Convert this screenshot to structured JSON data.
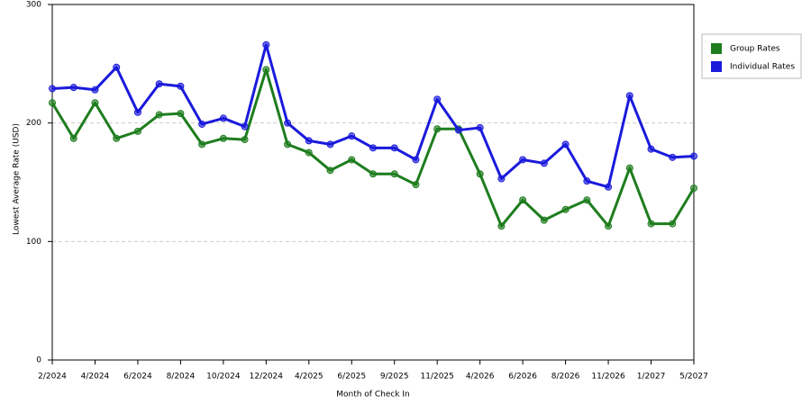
{
  "chart_data": {
    "type": "line",
    "x_label": "Month of Check In",
    "y_label": "Lowest Average Rate (USD)",
    "categories": [
      "2/2024",
      null,
      "4/2024",
      null,
      "6/2024",
      null,
      "8/2024",
      null,
      "10/2024",
      null,
      "12/2024",
      null,
      "4/2025",
      null,
      "6/2025",
      null,
      "9/2025",
      null,
      "11/2025",
      null,
      "4/2026",
      null,
      "6/2026",
      null,
      "8/2026",
      null,
      "11/2026",
      null,
      "1/2027",
      null,
      "5/2027"
    ],
    "series": [
      {
        "name": "Group Rates",
        "color": "#1e7d1e",
        "values": [
          217,
          187,
          217,
          187,
          193,
          207,
          208,
          182,
          187,
          186,
          245,
          182,
          175,
          160,
          169,
          157,
          157,
          148,
          195,
          195,
          157,
          113,
          135,
          118,
          127,
          135,
          113,
          162,
          115,
          115,
          145
        ]
      },
      {
        "name": "Individual Rates",
        "color": "#1a1adc",
        "values": [
          229,
          230,
          228,
          247,
          209,
          233,
          231,
          199,
          204,
          197,
          266,
          200,
          185,
          182,
          189,
          179,
          179,
          169,
          220,
          194,
          196,
          153,
          169,
          166,
          182,
          151,
          146,
          223,
          178,
          171,
          172
        ]
      }
    ],
    "ylim": [
      0,
      300
    ],
    "yticks": [
      0,
      100,
      200,
      300
    ],
    "grid": true,
    "legend": "right"
  }
}
